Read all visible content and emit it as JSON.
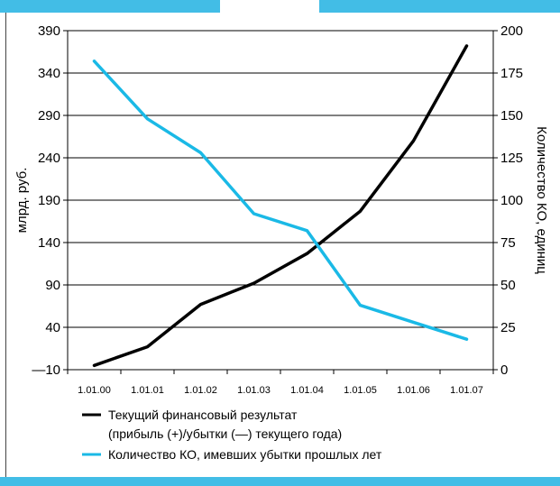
{
  "chart_data": {
    "type": "line",
    "categories": [
      "1.01.00",
      "1.01.01",
      "1.01.02",
      "1.01.03",
      "1.01.04",
      "1.01.05",
      "1.01.06",
      "1.01.07"
    ],
    "y_left": {
      "label": "млрд. руб.",
      "ticks": [
        "390",
        "340",
        "290",
        "240",
        "190",
        "140",
        "90",
        "40",
        "—10"
      ],
      "tick_values": [
        390,
        340,
        290,
        240,
        190,
        140,
        90,
        40,
        -10
      ],
      "range": [
        -10,
        390
      ]
    },
    "y_right": {
      "label": "Количество КО, единиц",
      "ticks": [
        "200",
        "175",
        "150",
        "125",
        "100",
        "75",
        "50",
        "25",
        "0"
      ],
      "tick_values": [
        200,
        175,
        150,
        125,
        100,
        75,
        50,
        25,
        0
      ],
      "range": [
        0,
        200
      ]
    },
    "grid": true,
    "series": [
      {
        "name_line1": "Текущий финансовый результат",
        "name_line2": "(прибыль (+)/убытки (—) текущего года)",
        "axis": "left",
        "color": "#000000",
        "values": [
          -5,
          17,
          67,
          92,
          127,
          177,
          260,
          372
        ]
      },
      {
        "name_line1": "Количество КО, имевших убытки прошлых лет",
        "axis": "right",
        "color": "#1ab9e6",
        "values": [
          182,
          148,
          128,
          92,
          82,
          38,
          28,
          18
        ]
      }
    ]
  }
}
